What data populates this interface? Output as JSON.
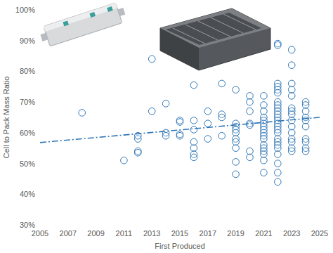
{
  "chart_data": {
    "type": "scatter",
    "x_label": "First Produced",
    "y_label": "Cell to Pack Mass Ratio",
    "xlim": [
      2005,
      2025
    ],
    "xticks": [
      2005,
      2007,
      2009,
      2011,
      2013,
      2015,
      2017,
      2019,
      2021,
      2023,
      2025
    ],
    "ylim": [
      30,
      100
    ],
    "yticks": [
      {
        "value": 30,
        "label": "30%"
      },
      {
        "value": 40,
        "label": "40%"
      },
      {
        "value": 50,
        "label": "50%"
      },
      {
        "value": 60,
        "label": "60%"
      },
      {
        "value": 70,
        "label": "70%"
      },
      {
        "value": 80,
        "label": "80%"
      },
      {
        "value": 90,
        "label": "90%"
      },
      {
        "value": 100,
        "label": "100%"
      }
    ],
    "grid": false,
    "series": [
      {
        "type": "scatter",
        "marker": "circle",
        "color": "#2e75b6",
        "x": [
          2008,
          2011,
          2012,
          2012,
          2012,
          2012,
          2013,
          2013,
          2014,
          2014,
          2014,
          2015,
          2015,
          2015,
          2015,
          2016,
          2016,
          2016,
          2016,
          2016,
          2016,
          2016,
          2017,
          2017,
          2017,
          2018,
          2018,
          2018,
          2018,
          2019,
          2019,
          2019,
          2019,
          2019,
          2019,
          2019,
          2019,
          2019,
          2019,
          2020,
          2020,
          2020,
          2020,
          2020,
          2020,
          2020,
          2021,
          2021,
          2021,
          2021,
          2021,
          2021,
          2021,
          2021,
          2021,
          2021,
          2021,
          2021,
          2021,
          2021,
          2021,
          2021,
          2021,
          2022,
          2022,
          2022,
          2022,
          2022,
          2022,
          2022,
          2022,
          2022,
          2022,
          2022,
          2022,
          2022,
          2022,
          2022,
          2022,
          2022,
          2022,
          2022,
          2022,
          2022,
          2022,
          2022,
          2022,
          2022,
          2023,
          2023,
          2023,
          2023,
          2023,
          2023,
          2023,
          2023,
          2023,
          2023,
          2023,
          2023,
          2023,
          2023,
          2023,
          2024,
          2024,
          2024,
          2024,
          2024,
          2024,
          2024,
          2024,
          2024,
          2024
        ],
        "values": [
          66.5,
          51,
          54,
          53.5,
          58,
          59,
          84,
          67,
          69.5,
          60,
          59,
          64,
          63.5,
          59.5,
          59,
          75.5,
          64,
          61,
          57,
          55,
          53,
          52,
          67,
          63,
          58,
          76,
          66,
          65,
          59,
          74,
          63,
          62,
          61,
          60,
          58,
          57,
          55,
          50.5,
          46.5,
          72,
          70,
          67,
          63,
          62.5,
          54,
          52,
          72,
          69,
          67,
          65,
          64,
          63,
          62,
          61,
          60,
          59,
          58,
          56,
          55,
          54,
          53,
          51,
          47,
          89,
          88.5,
          76,
          75,
          74,
          73,
          70,
          69,
          68,
          67,
          66,
          65,
          64,
          63,
          62,
          61,
          60,
          58,
          57,
          56,
          55,
          53,
          50,
          47,
          44,
          87,
          82,
          76,
          74,
          72,
          68,
          67,
          66,
          64,
          62,
          60,
          58,
          57,
          55,
          54,
          70,
          69,
          67,
          65,
          64,
          62,
          58,
          57,
          55,
          54
        ]
      },
      {
        "type": "line",
        "line_style": "dashdot",
        "color": "#2e75b6",
        "x": [
          2005,
          2025
        ],
        "values": [
          56.8,
          65
        ]
      }
    ]
  }
}
